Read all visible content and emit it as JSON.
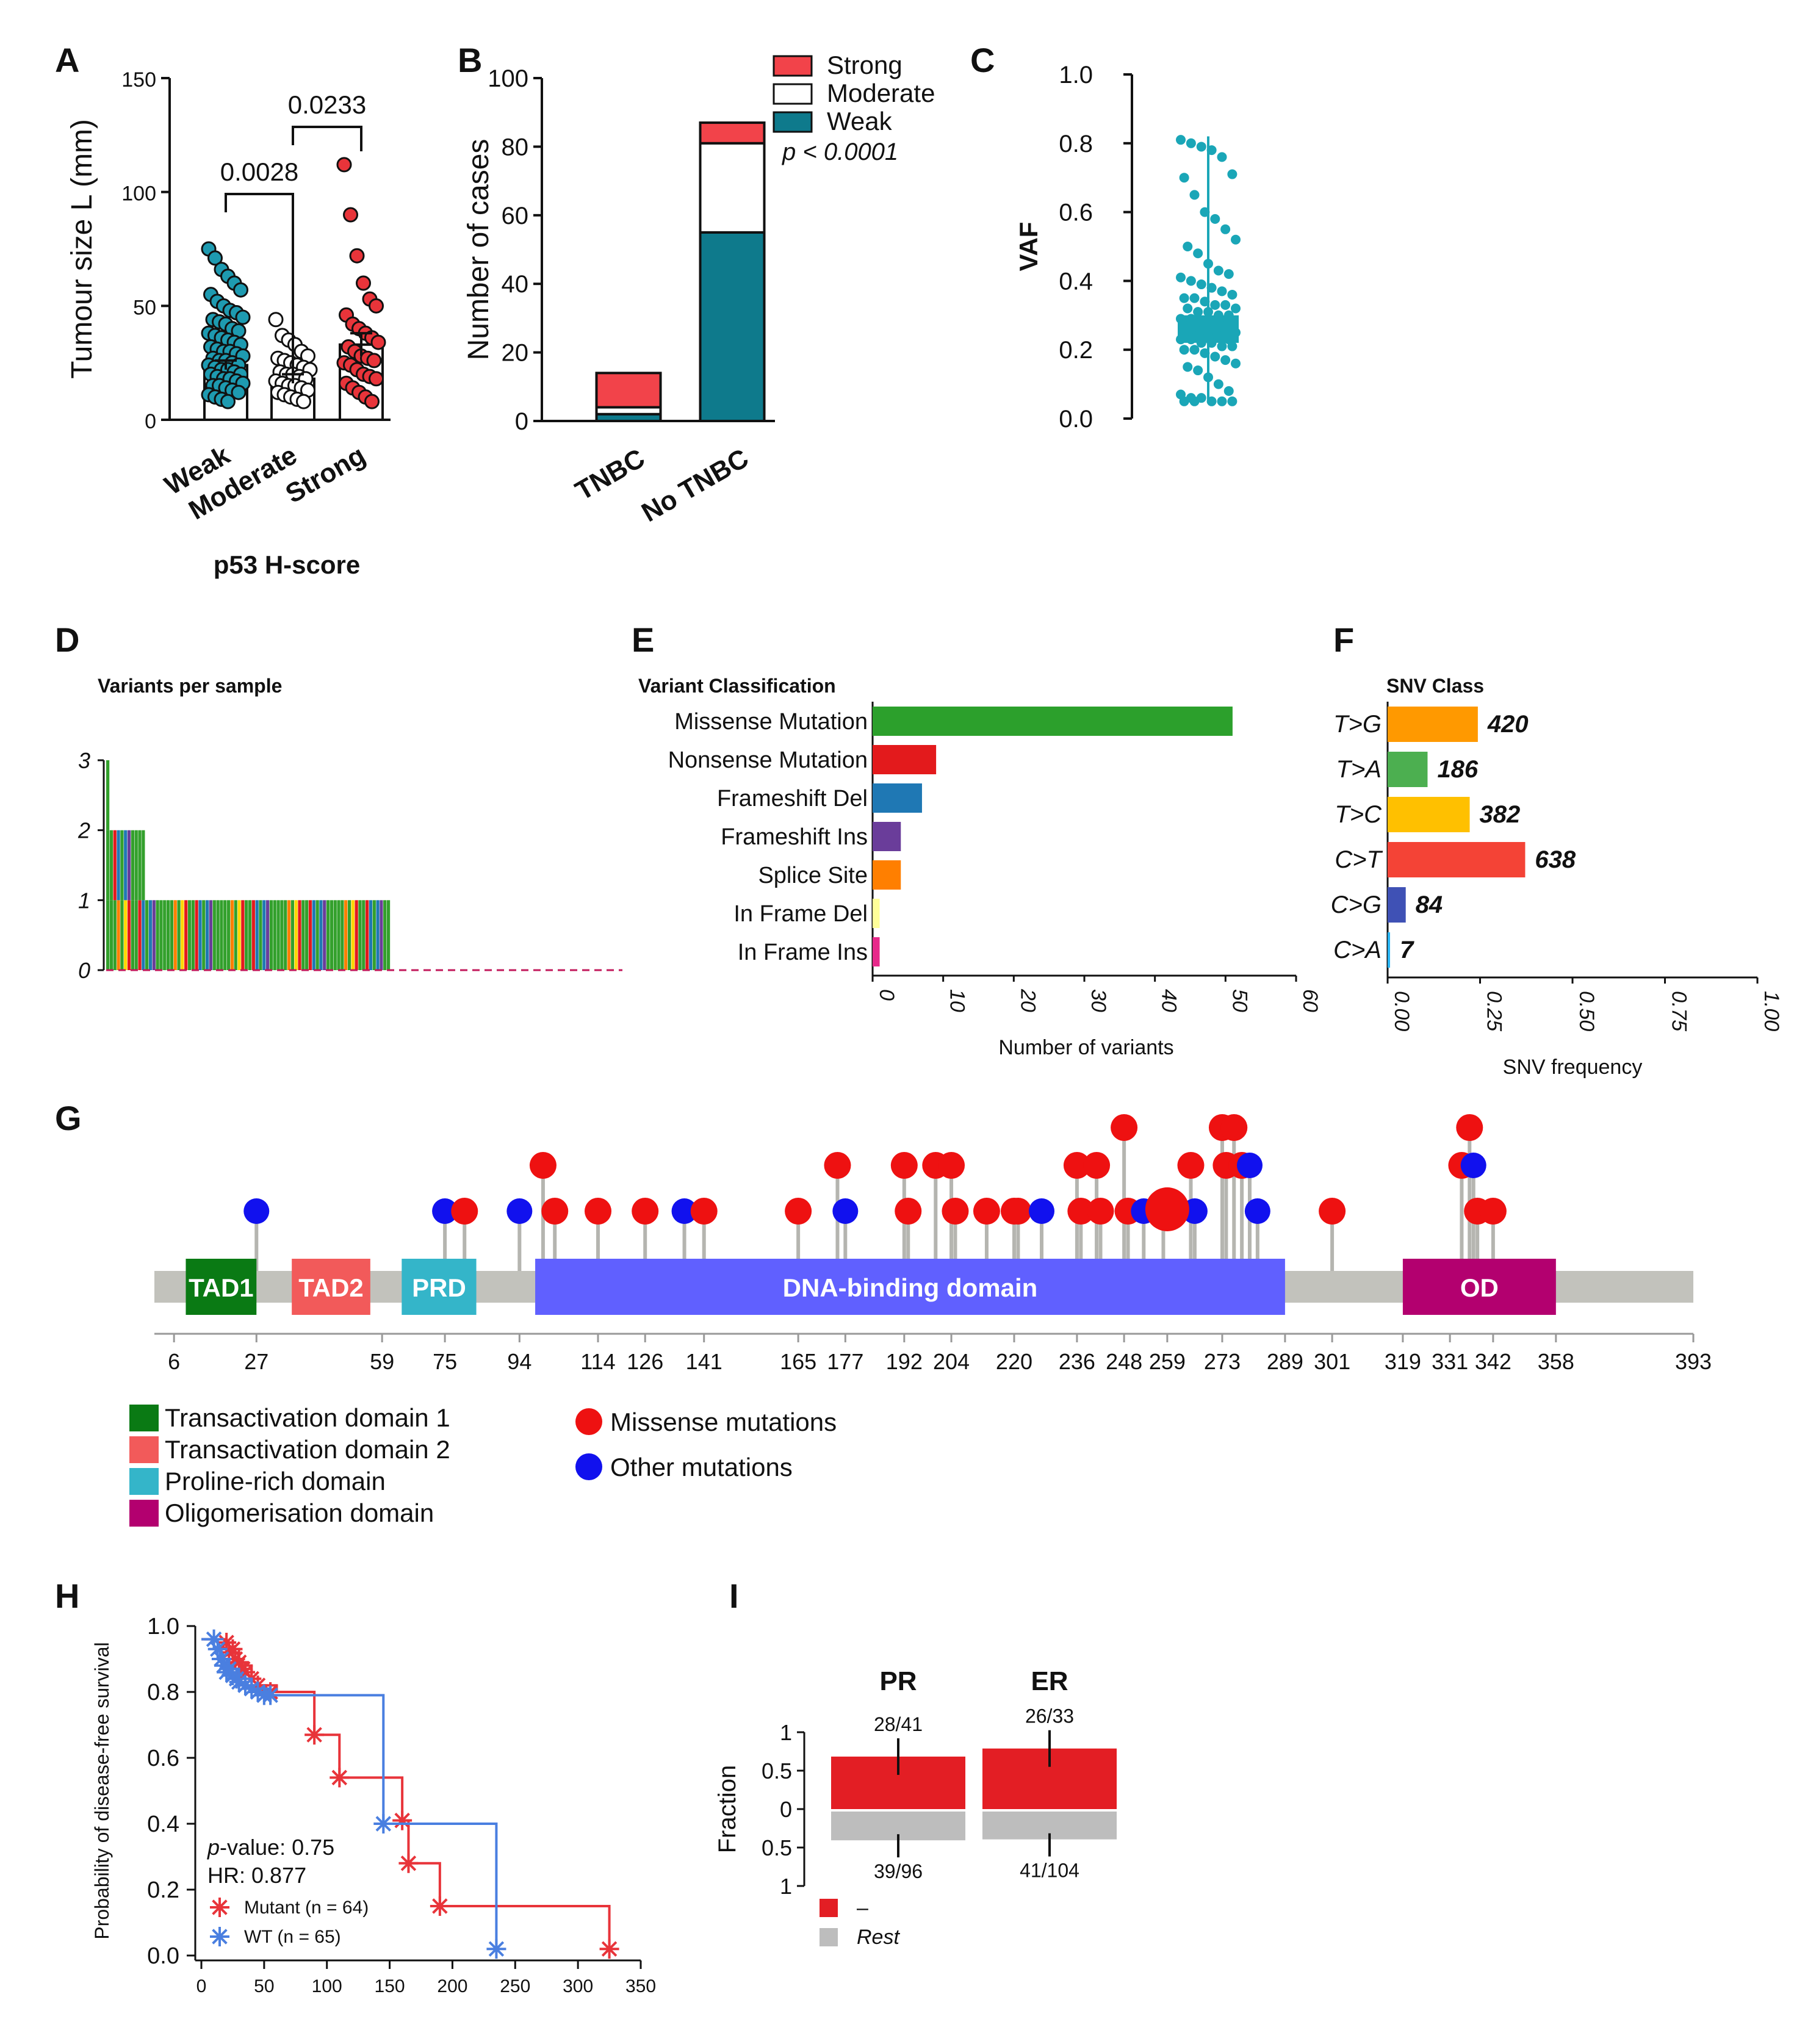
{
  "panels": {
    "A": {
      "label": "A"
    },
    "B": {
      "label": "B"
    },
    "C": {
      "label": "C"
    },
    "D": {
      "label": "D"
    },
    "E": {
      "label": "E"
    },
    "F": {
      "label": "F"
    },
    "G": {
      "label": "G"
    },
    "H": {
      "label": "H"
    },
    "I": {
      "label": "I"
    }
  },
  "chart_data": [
    {
      "id": "A",
      "type": "bar",
      "subtype": "bar with scatter points and error bars",
      "ylabel": "Tumour size L (mm)",
      "xlabel": "p53 H-score",
      "categories": [
        "Weak",
        "Moderate",
        "Strong"
      ],
      "values": [
        24,
        18,
        33
      ],
      "error": [
        2,
        2,
        5
      ],
      "ylim": [
        0,
        150
      ],
      "yticks": [
        0,
        50,
        100,
        150
      ],
      "point_colors": [
        "#1e9ab0",
        "#ffffff",
        "#e8343a"
      ],
      "points": [
        [
          75,
          71,
          66,
          63,
          60,
          57,
          55,
          52,
          50,
          48,
          47,
          45,
          44,
          43,
          42,
          40,
          39,
          38,
          37,
          36,
          35,
          34,
          33,
          32,
          31,
          30,
          30,
          29,
          28,
          27,
          26,
          26,
          25,
          24,
          24,
          23,
          22,
          22,
          21,
          20,
          20,
          19,
          18,
          18,
          17,
          16,
          15,
          15,
          14,
          13,
          12,
          11,
          10,
          9,
          8
        ],
        [
          44,
          37,
          35,
          33,
          30,
          28,
          27,
          26,
          25,
          24,
          23,
          22,
          21,
          20,
          20,
          19,
          18,
          17,
          16,
          15,
          15,
          14,
          13,
          12,
          11,
          10,
          9,
          8
        ],
        [
          112,
          90,
          72,
          60,
          53,
          50,
          46,
          42,
          40,
          38,
          36,
          34,
          32,
          30,
          28,
          27,
          26,
          25,
          24,
          22,
          20,
          19,
          18,
          16,
          14,
          12,
          10,
          8
        ]
      ],
      "comparisons": [
        {
          "from": "Weak",
          "to": "Moderate",
          "p": "0.0028"
        },
        {
          "from": "Moderate",
          "to": "Strong",
          "p": "0.0233"
        }
      ]
    },
    {
      "id": "B",
      "type": "bar",
      "subtype": "stacked",
      "ylabel": "Number of cases",
      "categories": [
        "TNBC",
        "No TNBC"
      ],
      "series": [
        {
          "name": "Weak",
          "color": "#0e7a8c",
          "values": [
            2,
            55
          ]
        },
        {
          "name": "Moderate",
          "color": "#ffffff",
          "values": [
            2,
            26
          ]
        },
        {
          "name": "Strong",
          "color": "#f2434a",
          "values": [
            10,
            6
          ]
        }
      ],
      "ylim": [
        0,
        100
      ],
      "yticks": [
        0,
        20,
        40,
        60,
        80,
        100
      ],
      "annotation": "p < 0.0001"
    },
    {
      "id": "C",
      "type": "scatter",
      "subtype": "box with jittered points",
      "ylabel": "VAF",
      "ylim": [
        0,
        1.0
      ],
      "yticks": [
        "0.0",
        "0.2",
        "0.4",
        "0.6",
        "0.8",
        "1.0"
      ],
      "box": {
        "q1": 0.22,
        "median": 0.26,
        "q3": 0.3,
        "low": 0.05,
        "high": 0.82
      },
      "color": "#1aa6b7",
      "values": [
        0.81,
        0.8,
        0.79,
        0.78,
        0.76,
        0.71,
        0.7,
        0.65,
        0.6,
        0.58,
        0.55,
        0.52,
        0.5,
        0.48,
        0.45,
        0.43,
        0.42,
        0.41,
        0.4,
        0.39,
        0.38,
        0.37,
        0.36,
        0.35,
        0.35,
        0.34,
        0.33,
        0.33,
        0.32,
        0.32,
        0.31,
        0.31,
        0.3,
        0.3,
        0.29,
        0.29,
        0.28,
        0.28,
        0.27,
        0.27,
        0.27,
        0.26,
        0.26,
        0.26,
        0.25,
        0.25,
        0.25,
        0.24,
        0.24,
        0.24,
        0.23,
        0.23,
        0.23,
        0.22,
        0.22,
        0.21,
        0.21,
        0.2,
        0.2,
        0.19,
        0.18,
        0.17,
        0.16,
        0.15,
        0.14,
        0.12,
        0.1,
        0.08,
        0.07,
        0.06,
        0.06,
        0.05,
        0.05,
        0.05,
        0.05,
        0.05
      ]
    },
    {
      "id": "D",
      "type": "bar",
      "title": "Variants per sample",
      "ylim": [
        0,
        3
      ],
      "yticks": [
        0,
        1,
        2,
        3
      ],
      "samples_with_3": 1,
      "samples_with_2": 10,
      "samples_with_1": 69,
      "total_span_samples": 146,
      "series_colors": [
        "#33a02c",
        "#e31a1c",
        "#1f78b4",
        "#6a3d9a",
        "#ff7f00",
        "#ffd700"
      ]
    },
    {
      "id": "E",
      "type": "bar",
      "orientation": "horizontal",
      "title": "Variant Classification",
      "xlabel": "Number of variants",
      "categories": [
        "Missense Mutation",
        "Nonsense Mutation",
        "Frameshift Del",
        "Frameshift Ins",
        "Splice Site",
        "In Frame Del",
        "In Frame Ins"
      ],
      "values": [
        51,
        9,
        7,
        4,
        4,
        1,
        1
      ],
      "colors": [
        "#2ca02c",
        "#e31a1c",
        "#1f78b4",
        "#6a3d9a",
        "#ff7f00",
        "#ffff99",
        "#e7298a"
      ],
      "xlim": [
        0,
        60
      ],
      "xticks": [
        0,
        10,
        20,
        30,
        40,
        50,
        60
      ]
    },
    {
      "id": "F",
      "type": "bar",
      "orientation": "horizontal",
      "title": "SNV Class",
      "xlabel": "SNV frequency",
      "categories": [
        "T>G",
        "T>A",
        "T>C",
        "C>T",
        "C>G",
        "C>A"
      ],
      "values": [
        0.244,
        0.108,
        0.222,
        0.372,
        0.049,
        0.004
      ],
      "counts": [
        "420",
        "186",
        "382",
        "638",
        "84",
        "7"
      ],
      "colors": [
        "#ff9900",
        "#4caf50",
        "#ffc000",
        "#f44336",
        "#3f51b5",
        "#29b6f6"
      ],
      "xlim": [
        0,
        1
      ],
      "xticks": [
        "0.00",
        "0.25",
        "0.50",
        "0.75",
        "1.00"
      ]
    },
    {
      "id": "G",
      "type": "scatter",
      "subtype": "lollipop protein domain plot",
      "xlim": [
        1,
        393
      ],
      "ticks": [
        "6",
        "27",
        "59",
        "75",
        "94",
        "114",
        "126",
        "141",
        "165",
        "177",
        "192",
        "204",
        "220",
        "236",
        "248",
        "259",
        "273",
        "289",
        "301",
        "319",
        "331",
        "342",
        "358",
        "393"
      ],
      "domains": [
        {
          "name": "TAD1",
          "start": 9,
          "end": 27,
          "color": "#0a7a14"
        },
        {
          "name": "TAD2",
          "start": 36,
          "end": 56,
          "color": "#f25a5a"
        },
        {
          "name": "PRD",
          "start": 64,
          "end": 83,
          "color": "#34b5c9"
        },
        {
          "name": "DNA-binding domain",
          "start": 98,
          "end": 289,
          "color": "#6060ff"
        },
        {
          "name": "OD",
          "start": 319,
          "end": 358,
          "color": "#b3006f"
        }
      ],
      "mutations": [
        {
          "pos": 27,
          "type": "other",
          "count": 1
        },
        {
          "pos": 75,
          "type": "other",
          "count": 1
        },
        {
          "pos": 80,
          "type": "missense",
          "count": 1
        },
        {
          "pos": 94,
          "type": "other",
          "count": 1
        },
        {
          "pos": 100,
          "type": "missense",
          "count": 2
        },
        {
          "pos": 103,
          "type": "missense",
          "count": 1
        },
        {
          "pos": 114,
          "type": "missense",
          "count": 1
        },
        {
          "pos": 126,
          "type": "missense",
          "count": 1
        },
        {
          "pos": 136,
          "type": "other",
          "count": 1
        },
        {
          "pos": 141,
          "type": "missense",
          "count": 1
        },
        {
          "pos": 165,
          "type": "missense",
          "count": 1
        },
        {
          "pos": 175,
          "type": "missense",
          "count": 2
        },
        {
          "pos": 177,
          "type": "other",
          "count": 1
        },
        {
          "pos": 192,
          "type": "missense",
          "count": 2
        },
        {
          "pos": 193,
          "type": "missense",
          "count": 1
        },
        {
          "pos": 200,
          "type": "missense",
          "count": 2
        },
        {
          "pos": 204,
          "type": "missense",
          "count": 2
        },
        {
          "pos": 205,
          "type": "missense",
          "count": 1
        },
        {
          "pos": 213,
          "type": "missense",
          "count": 1
        },
        {
          "pos": 220,
          "type": "missense",
          "count": 1
        },
        {
          "pos": 221,
          "type": "missense",
          "count": 1
        },
        {
          "pos": 227,
          "type": "other",
          "count": 1
        },
        {
          "pos": 236,
          "type": "missense",
          "count": 2
        },
        {
          "pos": 237,
          "type": "missense",
          "count": 1
        },
        {
          "pos": 241,
          "type": "missense",
          "count": 2
        },
        {
          "pos": 242,
          "type": "missense",
          "count": 1
        },
        {
          "pos": 248,
          "type": "missense",
          "count": 3
        },
        {
          "pos": 249,
          "type": "missense",
          "count": 1
        },
        {
          "pos": 253,
          "type": "other",
          "count": 1
        },
        {
          "pos": 258,
          "type": "missense",
          "count": 1
        },
        {
          "pos": 265,
          "type": "missense",
          "count": 2
        },
        {
          "pos": 266,
          "type": "other",
          "count": 1
        },
        {
          "pos": 273,
          "type": "missense",
          "count": 4
        },
        {
          "pos": 274,
          "type": "missense",
          "count": 2
        },
        {
          "pos": 276,
          "type": "missense",
          "count": 4
        },
        {
          "pos": 278,
          "type": "missense",
          "count": 2
        },
        {
          "pos": 280,
          "type": "other",
          "count": 2
        },
        {
          "pos": 282,
          "type": "other",
          "count": 1
        },
        {
          "pos": 301,
          "type": "missense",
          "count": 1
        },
        {
          "pos": 334,
          "type": "missense",
          "count": 2
        },
        {
          "pos": 336,
          "type": "missense",
          "count": 3
        },
        {
          "pos": 337,
          "type": "other",
          "count": 2
        },
        {
          "pos": 338,
          "type": "missense",
          "count": 1
        },
        {
          "pos": 342,
          "type": "missense",
          "count": 1
        }
      ],
      "big_marker_pos": 259,
      "legend": {
        "domains": [
          {
            "label": "Transactivation domain 1",
            "color": "#0a7a14"
          },
          {
            "label": "Transactivation domain 2",
            "color": "#f25a5a"
          },
          {
            "label": "Proline-rich domain",
            "color": "#34b5c9"
          },
          {
            "label": "Oligomerisation domain",
            "color": "#b3006f"
          }
        ],
        "mutations": [
          {
            "label": "Missense mutations",
            "color": "#ee1111"
          },
          {
            "label": "Other mutations",
            "color": "#1111ee"
          }
        ]
      }
    },
    {
      "id": "H",
      "type": "line",
      "subtype": "Kaplan-Meier step",
      "ylabel": "Probability of disease-free survival",
      "xlim": [
        0,
        350
      ],
      "ylim": [
        0,
        1.0
      ],
      "xticks": [
        0,
        50,
        100,
        150,
        200,
        250,
        300,
        350
      ],
      "yticks": [
        "0.0",
        "0.2",
        "0.4",
        "0.6",
        "0.8",
        "1.0"
      ],
      "series": [
        {
          "name": "Mutant (n = 64)",
          "color": "#e8343a",
          "x": [
            0,
            20,
            30,
            40,
            60,
            90,
            110,
            140,
            160,
            165,
            190,
            325
          ],
          "y": [
            0.96,
            0.93,
            0.88,
            0.82,
            0.8,
            0.67,
            0.54,
            0.54,
            0.41,
            0.28,
            0.15,
            0.02
          ],
          "censor_x": [
            20,
            22,
            25,
            27,
            30,
            33,
            35,
            40,
            45,
            55,
            90,
            110,
            160,
            165,
            190,
            325
          ],
          "censor_y": [
            0.95,
            0.92,
            0.93,
            0.9,
            0.89,
            0.87,
            0.86,
            0.84,
            0.82,
            0.8,
            0.67,
            0.54,
            0.41,
            0.28,
            0.15,
            0.02
          ]
        },
        {
          "name": "WT (n = 65)",
          "color": "#4a7fe0",
          "x": [
            0,
            10,
            15,
            20,
            30,
            40,
            55,
            145,
            235
          ],
          "y": [
            0.96,
            0.93,
            0.9,
            0.87,
            0.84,
            0.81,
            0.79,
            0.4,
            0.02
          ],
          "censor_x": [
            10,
            13,
            16,
            18,
            20,
            22,
            25,
            28,
            30,
            35,
            40,
            45,
            50,
            55,
            145,
            235
          ],
          "censor_y": [
            0.96,
            0.93,
            0.9,
            0.88,
            0.86,
            0.87,
            0.85,
            0.84,
            0.83,
            0.82,
            0.81,
            0.8,
            0.79,
            0.79,
            0.4,
            0.02
          ]
        }
      ],
      "annotations": {
        "p": "p-value: 0.75",
        "p_italic": "p",
        "p_rest": "-value: 0.75",
        "hr": "HR: 0.877"
      }
    },
    {
      "id": "I",
      "type": "bar",
      "subtype": "mirrored fraction bars",
      "ylabel": "Fraction",
      "categories": [
        "PR",
        "ER"
      ],
      "top_fractions": [
        0.683,
        0.788
      ],
      "top_labels": [
        "28/41",
        "26/33"
      ],
      "bottom_fractions": [
        0.406,
        0.394
      ],
      "bottom_labels": [
        "39/96",
        "41/104"
      ],
      "yticks_top": [
        "1",
        "0.5",
        "0"
      ],
      "yticks_bottom": [
        "0.5",
        "1"
      ],
      "legend": [
        {
          "label": "–",
          "color": "#e31e24"
        },
        {
          "label": "Rest",
          "color": "#bdbdbd"
        }
      ]
    }
  ]
}
